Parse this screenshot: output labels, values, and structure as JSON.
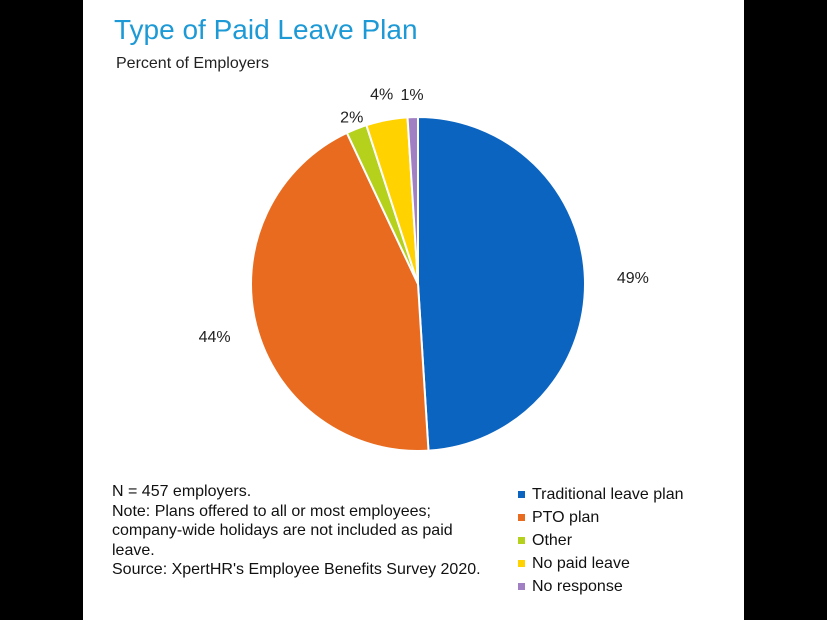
{
  "chart_data": {
    "type": "pie",
    "title": "Type of Paid Leave Plan",
    "subtitle": "Percent of Employers",
    "slices": [
      {
        "label": "Traditional leave plan",
        "value": 49,
        "display": "49%",
        "color": "#0b64c0"
      },
      {
        "label": "PTO plan",
        "value": 44,
        "display": "44%",
        "color": "#e86b1f"
      },
      {
        "label": "Other",
        "value": 2,
        "display": "2%",
        "color": "#b5d11c"
      },
      {
        "label": "No paid leave",
        "value": 4,
        "display": "4%",
        "color": "#ffd200"
      },
      {
        "label": "No response",
        "value": 1,
        "display": "1%",
        "color": "#a07fc3"
      }
    ],
    "legend_position": "bottom-right"
  },
  "notes": {
    "n": "N = 457 employers.",
    "note": "Note: Plans offered to all or most employees; company-wide holidays are not included as paid leave.",
    "source": "Source: XpertHR's Employee Benefits Survey 2020."
  }
}
